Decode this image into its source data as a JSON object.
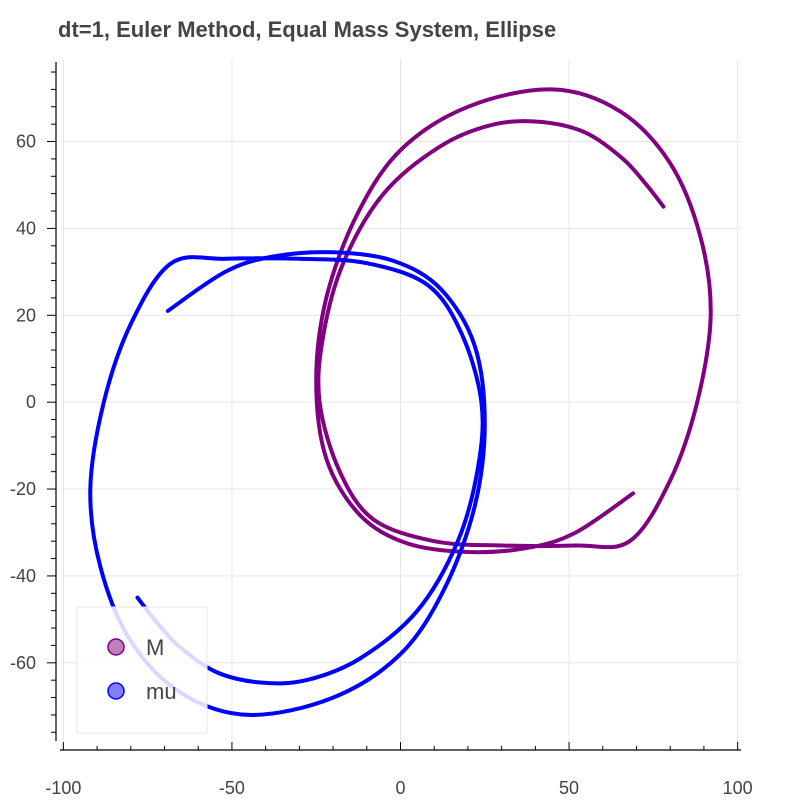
{
  "chart_data": {
    "type": "line",
    "title": "dt=1, Euler Method, Equal Mass System, Ellipse",
    "xlabel": "",
    "ylabel": "",
    "xlim": [
      -101,
      101
    ],
    "ylim": [
      -78,
      79
    ],
    "x_ticks": [
      -100,
      -50,
      0,
      50,
      100
    ],
    "y_ticks": [
      -60,
      -40,
      -20,
      0,
      20,
      40,
      60
    ],
    "grid": true,
    "legend_position": "bottom-left",
    "series": [
      {
        "name": "M",
        "color": "#800080",
        "points": [
          [
            69,
            -21
          ],
          [
            52,
            -30
          ],
          [
            38,
            -33.5
          ],
          [
            20,
            -34.5
          ],
          [
            2,
            -32.5
          ],
          [
            -12,
            -26
          ],
          [
            -22,
            -13
          ],
          [
            -25,
            5
          ],
          [
            -22,
            24
          ],
          [
            -13,
            43
          ],
          [
            0,
            58
          ],
          [
            20,
            68
          ],
          [
            45,
            72
          ],
          [
            65,
            67
          ],
          [
            80,
            55
          ],
          [
            89,
            38
          ],
          [
            92,
            20
          ],
          [
            88,
            0
          ],
          [
            80,
            -18
          ],
          [
            68,
            -32
          ],
          [
            52,
            -33
          ],
          [
            30,
            -33
          ],
          [
            10,
            -32
          ],
          [
            -8,
            -27
          ],
          [
            -18,
            -16
          ],
          [
            -24,
            0
          ],
          [
            -23,
            15
          ],
          [
            -17,
            32
          ],
          [
            -5,
            48
          ],
          [
            12,
            59
          ],
          [
            28,
            64
          ],
          [
            42,
            64.5
          ],
          [
            55,
            62
          ],
          [
            66,
            56
          ],
          [
            73,
            50
          ],
          [
            78,
            45
          ]
        ]
      },
      {
        "name": "mu",
        "color": "#0000ff",
        "points": [
          [
            -69,
            21
          ],
          [
            -52,
            30
          ],
          [
            -38,
            33.5
          ],
          [
            -20,
            34.5
          ],
          [
            -2,
            32.5
          ],
          [
            12,
            26
          ],
          [
            22,
            13
          ],
          [
            25,
            -5
          ],
          [
            22,
            -24
          ],
          [
            13,
            -43
          ],
          [
            0,
            -58
          ],
          [
            -20,
            -68
          ],
          [
            -45,
            -72
          ],
          [
            -65,
            -67
          ],
          [
            -80,
            -55
          ],
          [
            -89,
            -38
          ],
          [
            -92,
            -20
          ],
          [
            -88,
            0
          ],
          [
            -80,
            18
          ],
          [
            -68,
            32
          ],
          [
            -52,
            33
          ],
          [
            -30,
            33
          ],
          [
            -10,
            32
          ],
          [
            8,
            27
          ],
          [
            18,
            16
          ],
          [
            24,
            0
          ],
          [
            23,
            -15
          ],
          [
            17,
            -32
          ],
          [
            5,
            -48
          ],
          [
            -12,
            -59
          ],
          [
            -28,
            -64
          ],
          [
            -42,
            -64.5
          ],
          [
            -55,
            -62
          ],
          [
            -66,
            -56
          ],
          [
            -73,
            -50
          ],
          [
            -78,
            -45
          ]
        ]
      }
    ]
  }
}
